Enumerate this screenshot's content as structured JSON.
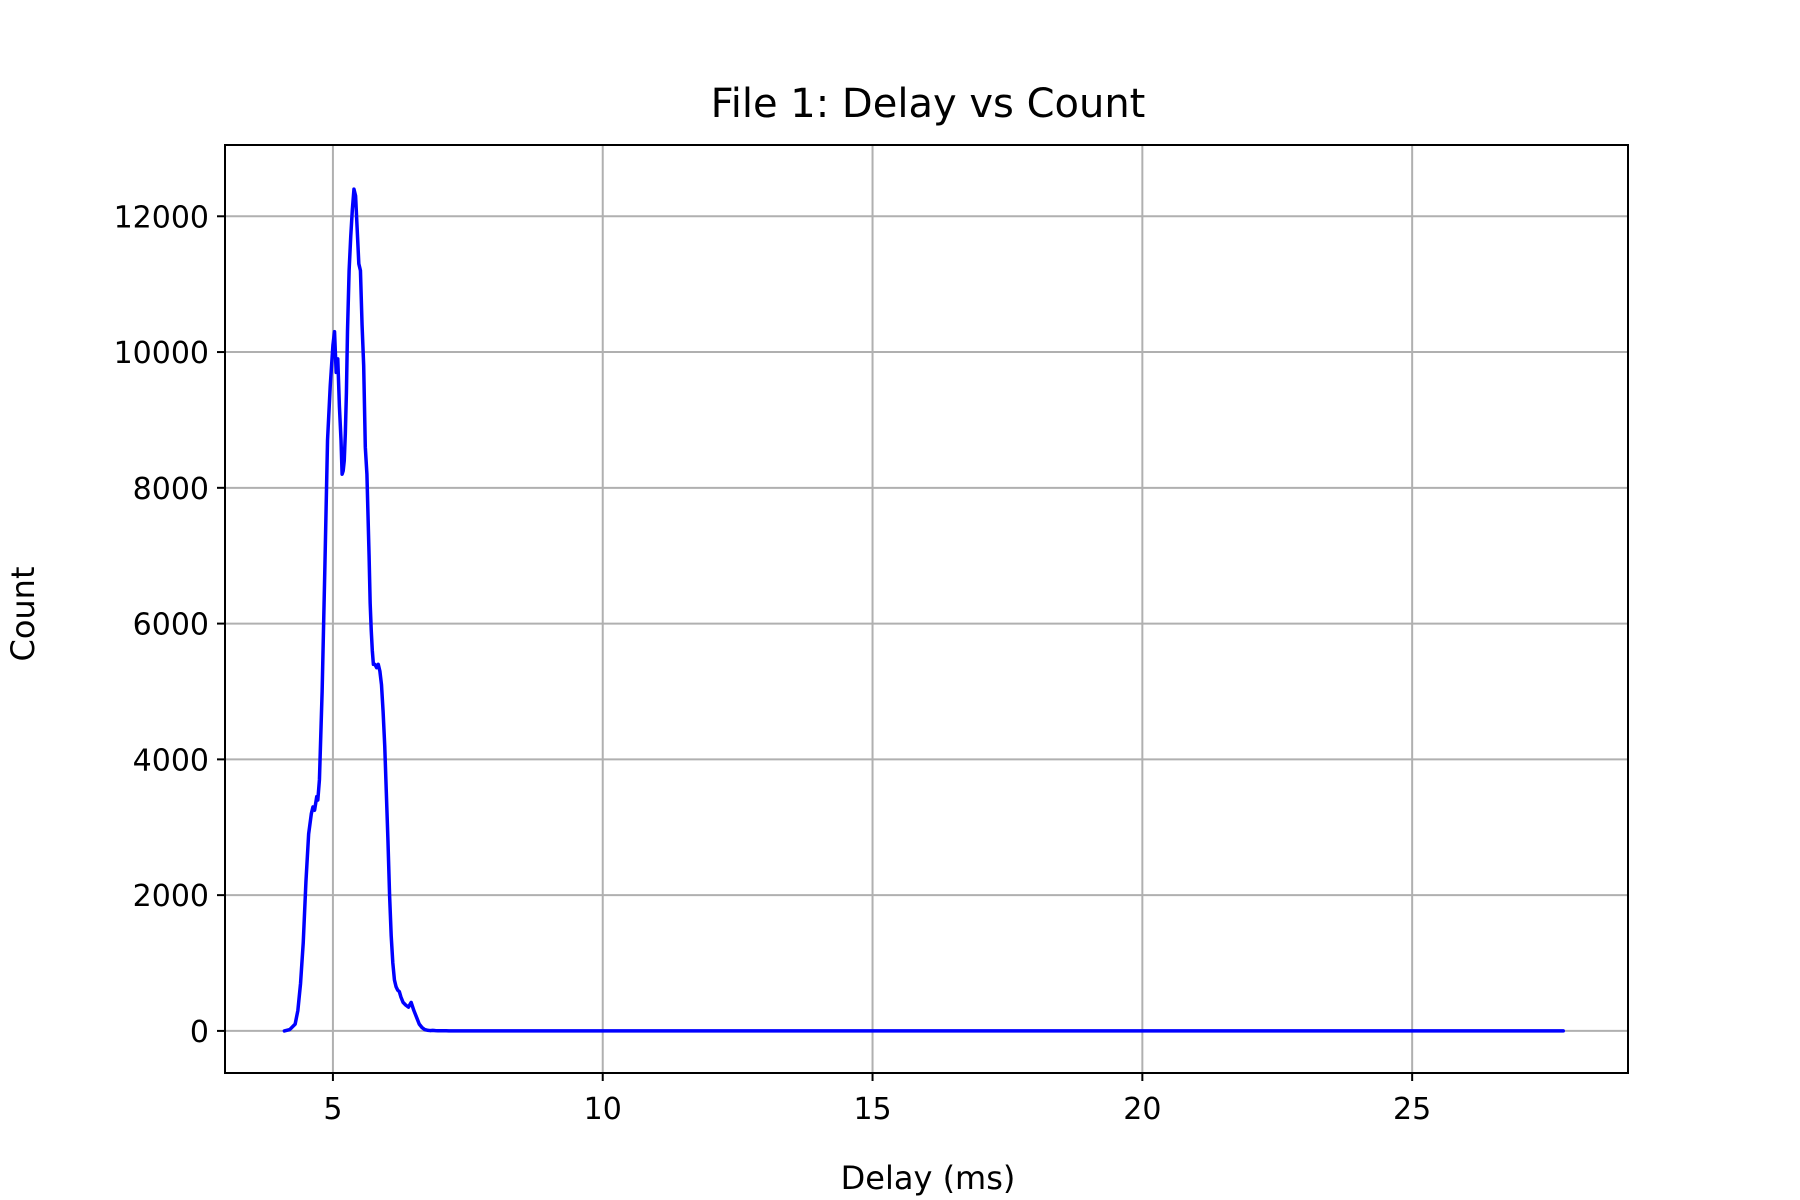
{
  "chart_data": {
    "type": "line",
    "title": "File 1: Delay vs Count",
    "xlabel": "Delay (ms)",
    "ylabel": "Count",
    "xlim": [
      3.0,
      29.0
    ],
    "ylim": [
      -620,
      13050
    ],
    "xticks": [
      5,
      10,
      15,
      20,
      25
    ],
    "xtick_labels": [
      "5",
      "10",
      "15",
      "20",
      "25"
    ],
    "yticks": [
      0,
      2000,
      4000,
      6000,
      8000,
      10000,
      12000
    ],
    "ytick_labels": [
      "0",
      "2000",
      "4000",
      "6000",
      "8000",
      "10000",
      "12000"
    ],
    "grid": true,
    "series": [
      {
        "color": "#0000ff",
        "x": [
          4.1,
          4.2,
          4.3,
          4.35,
          4.4,
          4.45,
          4.5,
          4.55,
          4.6,
          4.63,
          4.66,
          4.7,
          4.72,
          4.75,
          4.8,
          4.85,
          4.9,
          4.95,
          5.0,
          5.03,
          5.06,
          5.09,
          5.12,
          5.15,
          5.17,
          5.19,
          5.21,
          5.23,
          5.25,
          5.27,
          5.3,
          5.33,
          5.36,
          5.39,
          5.42,
          5.45,
          5.48,
          5.51,
          5.54,
          5.57,
          5.6,
          5.63,
          5.65,
          5.67,
          5.69,
          5.71,
          5.73,
          5.75,
          5.78,
          5.81,
          5.84,
          5.87,
          5.9,
          5.93,
          5.96,
          5.99,
          6.02,
          6.05,
          6.08,
          6.11,
          6.14,
          6.17,
          6.2,
          6.23,
          6.26,
          6.3,
          6.35,
          6.4,
          6.45,
          6.5,
          6.55,
          6.6,
          6.65,
          6.7,
          6.75,
          6.8,
          6.85,
          6.9,
          6.95,
          7.0,
          7.05,
          7.1,
          7.15,
          7.2,
          7.3,
          7.4,
          7.6,
          8.0,
          9.0,
          10.0,
          12.0,
          15.0,
          20.0,
          25.0,
          27.8
        ],
        "y": [
          0,
          20,
          100,
          300,
          700,
          1300,
          2200,
          2900,
          3200,
          3300,
          3250,
          3450,
          3400,
          3700,
          5000,
          6800,
          8700,
          9500,
          10100,
          10300,
          9700,
          9900,
          9200,
          8700,
          8200,
          8250,
          8400,
          8800,
          9400,
          10300,
          11200,
          11700,
          12100,
          12400,
          12300,
          11800,
          11300,
          11200,
          10400,
          9800,
          8600,
          8200,
          7600,
          7000,
          6300,
          5900,
          5600,
          5400,
          5400,
          5350,
          5400,
          5300,
          5100,
          4700,
          4200,
          3500,
          2800,
          2000,
          1400,
          1000,
          750,
          650,
          600,
          580,
          500,
          420,
          380,
          350,
          420,
          300,
          200,
          100,
          50,
          20,
          10,
          5,
          8,
          5,
          3,
          2,
          2,
          2,
          1,
          1,
          1,
          0,
          0,
          0,
          0,
          0,
          0,
          0,
          0,
          0,
          0
        ]
      }
    ]
  }
}
